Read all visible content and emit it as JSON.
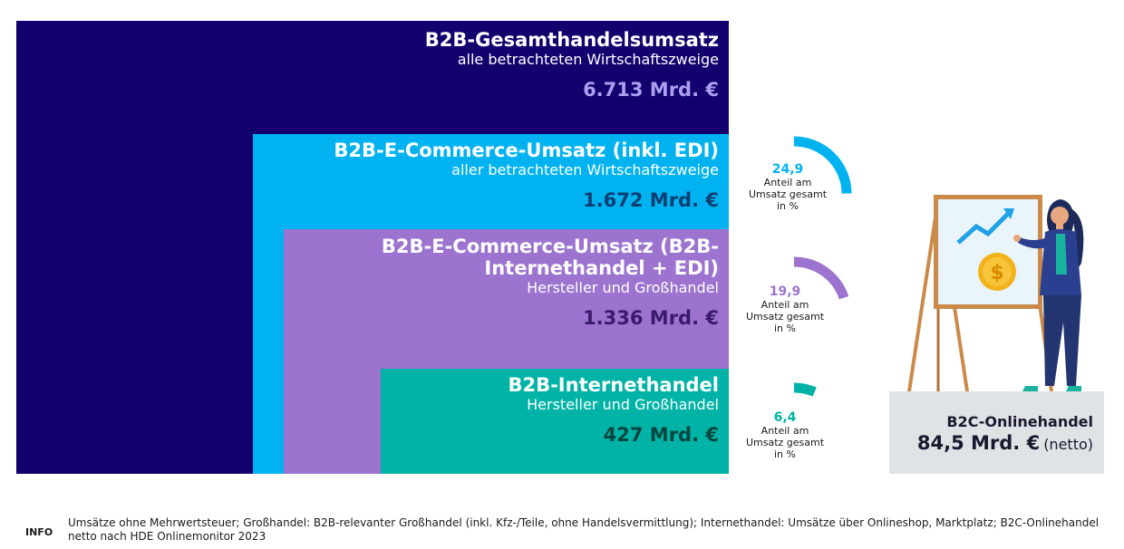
{
  "chart_data": {
    "type": "nested-area",
    "blocks": [
      {
        "title": "B2B-Gesamthandelsumsatz",
        "subtitle": "alle betrachteten Wirtschaftszweige",
        "value": 6713,
        "value_label": "6.713 Mrd. €",
        "color": "#13006e",
        "value_color": "#a9a0f0"
      },
      {
        "title": "B2B-E-Commerce-Umsatz (inkl. EDI)",
        "subtitle": "aller betrachteten Wirtschaftszweige",
        "value": 1672,
        "value_label": "1.672 Mrd. €",
        "color": "#00b3f0",
        "value_color": "#0a3f73"
      },
      {
        "title_lines": [
          "B2B-E-Commerce-Umsatz (B2B-",
          "Internethandel + EDI)"
        ],
        "subtitle": "Hersteller und Großhandel",
        "value": 1336,
        "value_label": "1.336 Mrd. €",
        "color": "#9c73cf",
        "value_color": "#3a1a6a"
      },
      {
        "title": "B2B-Internethandel",
        "subtitle": "Hersteller und Großhandel",
        "value": 427,
        "value_label": "427 Mrd. €",
        "color": "#00b3a6",
        "value_color": "#08453f"
      }
    ],
    "shares": [
      {
        "value": 24.9,
        "label": "24,9",
        "color": "#00b3f0"
      },
      {
        "value": 19.9,
        "label": "19,9",
        "color": "#9c73cf"
      },
      {
        "value": 6.4,
        "label": "6,4",
        "color": "#00b3a6"
      }
    ],
    "share_caption": [
      "Anteil am",
      "Umsatz gesamt",
      "in %"
    ],
    "b2c": {
      "title": "B2C-Onlinehandel",
      "value": 84.5,
      "value_label": "84,5 Mrd. €",
      "unit": "(netto)"
    }
  },
  "info": {
    "tag": "INFO",
    "text": "Umsätze ohne Mehrwertsteuer; Großhandel: B2B-relevanter Großhandel (inkl. Kfz-/Teile, ohne Handelsvermittlung); Internethandel: Umsätze über Onlineshop, Marktplatz; B2C-Onlinehandel netto nach HDE Onlinemonitor 2023"
  },
  "illustration": {
    "icon": "presenter-with-flipchart-icon",
    "symbol": "$"
  }
}
